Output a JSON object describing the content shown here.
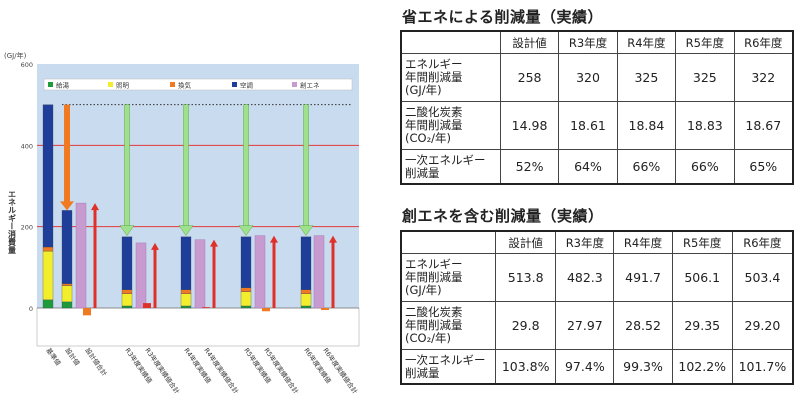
{
  "chart_data": {
    "type": "bar",
    "ylabel": "エネルギー消費量",
    "unit": "(GJ/年)",
    "ylim": [
      -200,
      600
    ],
    "yticks": [
      "600",
      "400",
      "200",
      "0"
    ],
    "legend": [
      {
        "name": "給湯",
        "color": "#1f9a3a"
      },
      {
        "name": "照明",
        "color": "#f2ee2c"
      },
      {
        "name": "換気",
        "color": "#f07a22"
      },
      {
        "name": "空調",
        "color": "#1e3e9a"
      },
      {
        "name": "創エネ",
        "color": "#c79ad0"
      }
    ],
    "categories": [
      "基準値",
      "設計値",
      "設計値合計",
      "R3年度実績値",
      "R3年度実績値合計",
      "R4年度実績値",
      "R4年度実績値合計",
      "R5年度実績値",
      "R5年度実績値合計",
      "R6年度実績値",
      "R6年度実績値合計"
    ],
    "reference_line": 500,
    "stacks": [
      {
        "category": "基準値",
        "kyuto": 20,
        "shomei": 120,
        "kanki": 10,
        "kucho": 350
      },
      {
        "category": "設計値",
        "kyuto": 15,
        "shomei": 40,
        "kanki": 5,
        "kucho": 180
      },
      {
        "category": "R3年度実績値",
        "kyuto": 5,
        "shomei": 30,
        "kanki": 10,
        "kucho": 130
      },
      {
        "category": "R4年度実績値",
        "kyuto": 5,
        "shomei": 30,
        "kanki": 10,
        "kucho": 130
      },
      {
        "category": "R5年度実績値",
        "kyuto": 5,
        "shomei": 35,
        "kanki": 10,
        "kucho": 125
      },
      {
        "category": "R6年度実績値",
        "kyuto": 5,
        "shomei": 30,
        "kanki": 10,
        "kucho": 130
      }
    ],
    "sogene": [
      {
        "category": "設計値合計",
        "value": 258
      },
      {
        "category": "R3年度実績値合計",
        "value": 160
      },
      {
        "category": "R4年度実績値合計",
        "value": 168
      },
      {
        "category": "R5年度実績値合計",
        "value": 178
      },
      {
        "category": "R6年度実績値合計",
        "value": 178
      }
    ],
    "totals": [
      {
        "category": "設計値合計",
        "value": -18
      },
      {
        "category": "R3年度実績値合計",
        "value": 12
      },
      {
        "category": "R4年度実績値合計",
        "value": 2
      },
      {
        "category": "R5年度実績値合計",
        "value": -8
      },
      {
        "category": "R6年度実績値合計",
        "value": -5
      }
    ]
  },
  "table1": {
    "title": "省エネによる削減量（実績）",
    "headers": [
      "",
      "設計値",
      "R3年度",
      "R4年度",
      "R5年度",
      "R6年度"
    ],
    "rows": [
      {
        "label": [
          "エネルギー",
          "年間削減量",
          "(GJ/年)"
        ],
        "values": [
          "258",
          "320",
          "325",
          "325",
          "322"
        ]
      },
      {
        "label": [
          "二酸化炭素",
          "年間削減量",
          "(CO₂/年)"
        ],
        "values": [
          "14.98",
          "18.61",
          "18.84",
          "18.83",
          "18.67"
        ]
      },
      {
        "label": [
          "一次エネルギー",
          "削減量"
        ],
        "values": [
          "52%",
          "64%",
          "66%",
          "66%",
          "65%"
        ]
      }
    ]
  },
  "table2": {
    "title": "創エネを含む削減量（実績）",
    "headers": [
      "",
      "設計値",
      "R3年度",
      "R4年度",
      "R5年度",
      "R6年度"
    ],
    "rows": [
      {
        "label": [
          "エネルギー",
          "年間削減量",
          "(GJ/年)"
        ],
        "values": [
          "513.8",
          "482.3",
          "491.7",
          "506.1",
          "503.4"
        ]
      },
      {
        "label": [
          "二酸化炭素",
          "年間削減量",
          "(CO₂/年)"
        ],
        "values": [
          "29.8",
          "27.97",
          "28.52",
          "29.35",
          "29.20"
        ]
      },
      {
        "label": [
          "一次エネルギー",
          "削減量"
        ],
        "values": [
          "103.8%",
          "97.4%",
          "99.3%",
          "102.2%",
          "101.7%"
        ]
      }
    ]
  }
}
